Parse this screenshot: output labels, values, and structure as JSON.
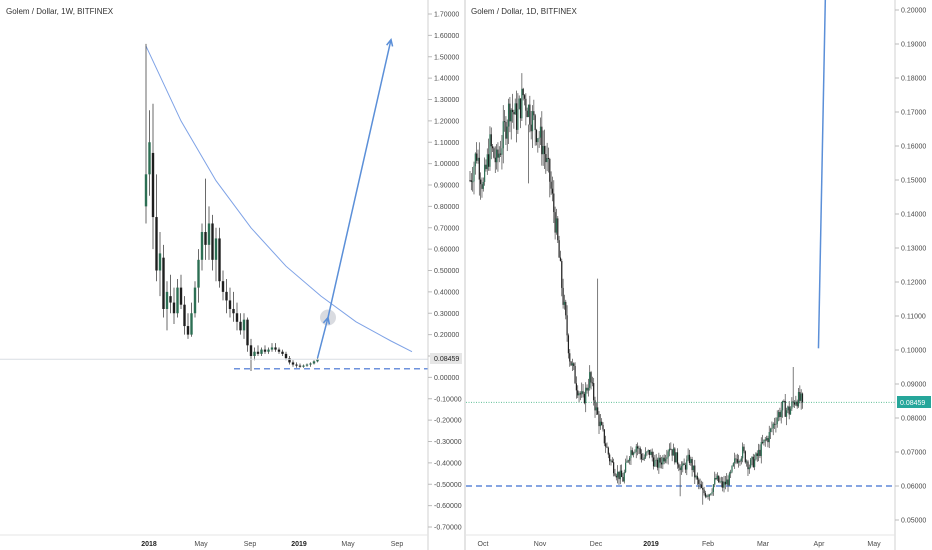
{
  "colors": {
    "bull": "#2c6e53",
    "bear": "#1e1e1e",
    "wick": "#444444",
    "arrow": "#5b8fd8",
    "curve": "#7ea2e6",
    "support": "#3f6fd0",
    "price_line_left": "#d9dde3",
    "price_line_right": "#5fbf96",
    "price_badge_left": "#e6e6e6",
    "price_badge_right": "#26a69a",
    "axis_line": "#d0d0d0"
  },
  "chart_data": [
    {
      "type": "candlestick",
      "title": "Golem / Dollar, 1W, BITFINEX",
      "ylim": [
        -0.75,
        1.75
      ],
      "yticks": [
        "1.70000",
        "1.60000",
        "1.50000",
        "1.40000",
        "1.30000",
        "1.20000",
        "1.10000",
        "1.00000",
        "0.90000",
        "0.80000",
        "0.70000",
        "0.60000",
        "0.50000",
        "0.40000",
        "0.30000",
        "0.20000",
        "0.10000",
        "0.00000",
        "-0.10000",
        "-0.20000",
        "-0.30000",
        "-0.40000",
        "-0.50000",
        "-0.60000",
        "-0.70000"
      ],
      "xticks": [
        "2018",
        "May",
        "Sep",
        "2019",
        "May",
        "Sep"
      ],
      "last_price": "0.08459",
      "support_level": 0.04,
      "series": [
        {
          "o": 0.8,
          "h": 1.56,
          "l": 0.72,
          "c": 0.95
        },
        {
          "o": 0.95,
          "h": 1.25,
          "l": 0.85,
          "c": 1.1
        },
        {
          "o": 1.05,
          "h": 1.28,
          "l": 0.6,
          "c": 0.75
        },
        {
          "o": 0.75,
          "h": 0.95,
          "l": 0.45,
          "c": 0.5
        },
        {
          "o": 0.5,
          "h": 0.68,
          "l": 0.38,
          "c": 0.58
        },
        {
          "o": 0.56,
          "h": 0.62,
          "l": 0.28,
          "c": 0.32
        },
        {
          "o": 0.32,
          "h": 0.45,
          "l": 0.22,
          "c": 0.4
        },
        {
          "o": 0.38,
          "h": 0.48,
          "l": 0.3,
          "c": 0.35
        },
        {
          "o": 0.35,
          "h": 0.42,
          "l": 0.25,
          "c": 0.3
        },
        {
          "o": 0.3,
          "h": 0.46,
          "l": 0.28,
          "c": 0.42
        },
        {
          "o": 0.42,
          "h": 0.48,
          "l": 0.32,
          "c": 0.34
        },
        {
          "o": 0.34,
          "h": 0.38,
          "l": 0.2,
          "c": 0.24
        },
        {
          "o": 0.24,
          "h": 0.3,
          "l": 0.18,
          "c": 0.2
        },
        {
          "o": 0.2,
          "h": 0.35,
          "l": 0.19,
          "c": 0.3
        },
        {
          "o": 0.3,
          "h": 0.45,
          "l": 0.28,
          "c": 0.42
        },
        {
          "o": 0.42,
          "h": 0.6,
          "l": 0.35,
          "c": 0.55
        },
        {
          "o": 0.55,
          "h": 0.72,
          "l": 0.5,
          "c": 0.68
        },
        {
          "o": 0.68,
          "h": 0.93,
          "l": 0.55,
          "c": 0.62
        },
        {
          "o": 0.62,
          "h": 0.8,
          "l": 0.55,
          "c": 0.72
        },
        {
          "o": 0.72,
          "h": 0.76,
          "l": 0.5,
          "c": 0.55
        },
        {
          "o": 0.55,
          "h": 0.7,
          "l": 0.45,
          "c": 0.65
        },
        {
          "o": 0.65,
          "h": 0.7,
          "l": 0.42,
          "c": 0.45
        },
        {
          "o": 0.45,
          "h": 0.5,
          "l": 0.36,
          "c": 0.4
        },
        {
          "o": 0.4,
          "h": 0.46,
          "l": 0.3,
          "c": 0.36
        },
        {
          "o": 0.36,
          "h": 0.42,
          "l": 0.28,
          "c": 0.32
        },
        {
          "o": 0.32,
          "h": 0.4,
          "l": 0.26,
          "c": 0.3
        },
        {
          "o": 0.3,
          "h": 0.35,
          "l": 0.22,
          "c": 0.26
        },
        {
          "o": 0.26,
          "h": 0.3,
          "l": 0.2,
          "c": 0.22
        },
        {
          "o": 0.22,
          "h": 0.3,
          "l": 0.18,
          "c": 0.27
        },
        {
          "o": 0.27,
          "h": 0.28,
          "l": 0.12,
          "c": 0.15
        },
        {
          "o": 0.15,
          "h": 0.18,
          "l": 0.03,
          "c": 0.1
        },
        {
          "o": 0.1,
          "h": 0.14,
          "l": 0.08,
          "c": 0.12
        },
        {
          "o": 0.12,
          "h": 0.15,
          "l": 0.1,
          "c": 0.11
        },
        {
          "o": 0.11,
          "h": 0.14,
          "l": 0.1,
          "c": 0.13
        },
        {
          "o": 0.13,
          "h": 0.15,
          "l": 0.11,
          "c": 0.12
        },
        {
          "o": 0.12,
          "h": 0.14,
          "l": 0.11,
          "c": 0.13
        },
        {
          "o": 0.13,
          "h": 0.16,
          "l": 0.12,
          "c": 0.14
        },
        {
          "o": 0.14,
          "h": 0.16,
          "l": 0.12,
          "c": 0.13
        },
        {
          "o": 0.13,
          "h": 0.14,
          "l": 0.11,
          "c": 0.12
        },
        {
          "o": 0.12,
          "h": 0.13,
          "l": 0.1,
          "c": 0.11
        },
        {
          "o": 0.11,
          "h": 0.12,
          "l": 0.08,
          "c": 0.09
        },
        {
          "o": 0.09,
          "h": 0.1,
          "l": 0.06,
          "c": 0.07
        },
        {
          "o": 0.07,
          "h": 0.08,
          "l": 0.05,
          "c": 0.06
        },
        {
          "o": 0.06,
          "h": 0.07,
          "l": 0.045,
          "c": 0.055
        },
        {
          "o": 0.055,
          "h": 0.065,
          "l": 0.045,
          "c": 0.05
        },
        {
          "o": 0.05,
          "h": 0.06,
          "l": 0.045,
          "c": 0.055
        },
        {
          "o": 0.055,
          "h": 0.065,
          "l": 0.05,
          "c": 0.06
        },
        {
          "o": 0.06,
          "h": 0.07,
          "l": 0.05,
          "c": 0.065
        },
        {
          "o": 0.065,
          "h": 0.08,
          "l": 0.06,
          "c": 0.075
        },
        {
          "o": 0.075,
          "h": 0.09,
          "l": 0.07,
          "c": 0.085
        }
      ],
      "annotations": {
        "decay_curve": [
          [
            0,
            1.55
          ],
          [
            10,
            1.2
          ],
          [
            20,
            0.92
          ],
          [
            30,
            0.7
          ],
          [
            40,
            0.52
          ],
          [
            50,
            0.38
          ],
          [
            60,
            0.26
          ],
          [
            70,
            0.17
          ],
          [
            76,
            0.12
          ]
        ],
        "arrow_from": [
          49,
          0.09
        ],
        "arrow_mid": [
          52,
          0.28
        ],
        "arrow_to": [
          70,
          1.58
        ],
        "highlight_circle": [
          52,
          0.28
        ]
      }
    },
    {
      "type": "candlestick",
      "title": "Golem / Dollar, 1D, BITFINEX",
      "ylim": [
        0.0465,
        0.2045
      ],
      "yticks": [
        "0.20000",
        "0.19000",
        "0.18000",
        "0.17000",
        "0.16000",
        "0.15000",
        "0.14000",
        "0.13000",
        "0.12000",
        "0.11000",
        "0.10000",
        "0.09000",
        "0.08000",
        "0.07000",
        "0.06000",
        "0.05000"
      ],
      "xticks": [
        "Oct",
        "Nov",
        "Dec",
        "2019",
        "Feb",
        "Mar",
        "Apr",
        "May"
      ],
      "last_price": "0.08459",
      "support_level": 0.06,
      "series_anchors": [
        [
          0,
          0.15
        ],
        [
          5,
          0.158
        ],
        [
          10,
          0.148
        ],
        [
          15,
          0.16
        ],
        [
          20,
          0.155
        ],
        [
          25,
          0.163
        ],
        [
          30,
          0.172
        ],
        [
          35,
          0.168
        ],
        [
          40,
          0.175
        ],
        [
          45,
          0.17
        ],
        [
          50,
          0.165
        ],
        [
          55,
          0.16
        ],
        [
          60,
          0.15
        ],
        [
          65,
          0.135
        ],
        [
          70,
          0.115
        ],
        [
          75,
          0.098
        ],
        [
          80,
          0.09
        ],
        [
          85,
          0.085
        ],
        [
          90,
          0.092
        ],
        [
          95,
          0.082
        ],
        [
          100,
          0.075
        ],
        [
          105,
          0.068
        ],
        [
          110,
          0.064
        ],
        [
          115,
          0.062
        ],
        [
          120,
          0.07
        ],
        [
          125,
          0.072
        ],
        [
          130,
          0.068
        ],
        [
          135,
          0.07
        ],
        [
          140,
          0.066
        ],
        [
          145,
          0.068
        ],
        [
          150,
          0.072
        ],
        [
          155,
          0.068
        ],
        [
          160,
          0.065
        ],
        [
          165,
          0.068
        ],
        [
          170,
          0.062
        ],
        [
          175,
          0.058
        ],
        [
          180,
          0.058
        ],
        [
          185,
          0.062
        ],
        [
          190,
          0.06
        ],
        [
          195,
          0.062
        ],
        [
          200,
          0.068
        ],
        [
          205,
          0.07
        ],
        [
          210,
          0.066
        ],
        [
          215,
          0.068
        ],
        [
          220,
          0.072
        ],
        [
          225,
          0.075
        ],
        [
          230,
          0.08
        ],
        [
          235,
          0.083
        ],
        [
          240,
          0.082
        ],
        [
          245,
          0.086
        ],
        [
          250,
          0.0846
        ]
      ],
      "annotations": {
        "arrow_from": [
          262,
          0.1005
        ],
        "arrow_to": [
          268,
          0.22
        ]
      }
    }
  ]
}
